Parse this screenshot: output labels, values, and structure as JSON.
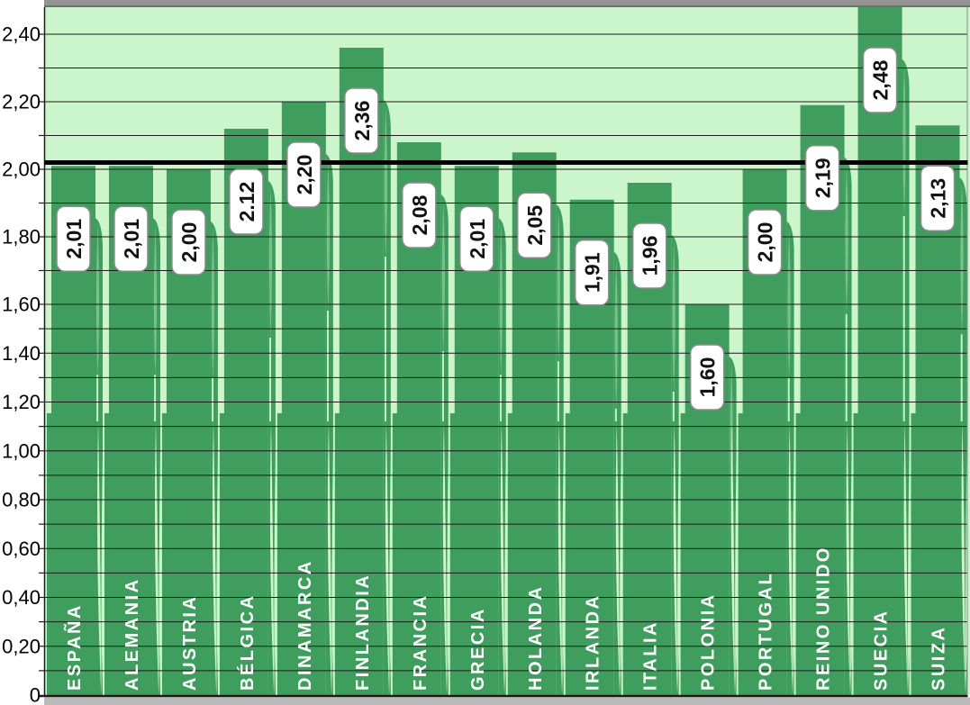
{
  "chart_data": {
    "type": "bar",
    "categories": [
      "ESPAÑA",
      "ALEMANIA",
      "AUSTRIA",
      "BÉLGICA",
      "DINAMARCA",
      "FINLANDIA",
      "FRANCIA",
      "GRECIA",
      "HOLANDA",
      "IRLANDA",
      "ITALIA",
      "POLONIA",
      "PORTUGAL",
      "REINO UNIDO",
      "SUECIA",
      "SUIZA"
    ],
    "values": [
      2.01,
      2.01,
      2.0,
      2.12,
      2.2,
      2.36,
      2.08,
      2.01,
      2.05,
      1.91,
      1.96,
      1.6,
      2.0,
      2.19,
      2.48,
      2.13
    ],
    "value_labels": [
      "2,01",
      "2,01",
      "2,00",
      "2.12",
      "2,20",
      "2,36",
      "2,08",
      "2,01",
      "2,05",
      "1,91",
      "1,96",
      "1,60",
      "2,00",
      "2,19",
      "2,48",
      "2,13"
    ],
    "xlabel": "",
    "ylabel": "",
    "ylim": [
      0,
      2.487
    ],
    "y_axis": {
      "tick_labels": [
        "2,40",
        "2,20",
        "2,00",
        "1,80",
        "1,60",
        "1,40",
        "1,20",
        "1,00",
        "0,80",
        "0,60",
        "0,40",
        "0,20",
        "0"
      ],
      "tick_values": [
        2.4,
        2.2,
        2.0,
        1.8,
        1.6,
        1.4,
        1.2,
        1.0,
        0.8,
        0.6,
        0.4,
        0.2,
        0
      ],
      "minor_grid_step": 0.1,
      "decimal_separator": ","
    },
    "reference_line": {
      "value": 2.02,
      "style": "thick black horizontal line"
    },
    "grid": "horizontal minor gridlines every 0.10, drawn over bars",
    "legend": "none",
    "bar_label_position": "rotated -90deg, white rounded box below bar top",
    "category_label_position": "rotated -90deg, white bold text inside bar bottom"
  },
  "colors": {
    "plot_background": "#cbf5ca",
    "bar": "#3f9e5d",
    "leaf_mid_green": "#7cc08e",
    "leaf_light_green": "#cbf5ca",
    "gridline": "#1c1c1c",
    "reference_line": "#000000",
    "value_box_bg": "#ffffff",
    "value_box_border": "#8c8c8c",
    "value_text": "#111111",
    "country_text": "#ffffff",
    "axis_text": "#000000",
    "axis_line": "#1a1a1a",
    "frame_strip_top": "#949494",
    "frame_strip_bottom": "#b9b9b9",
    "outer_background": "#ffffff"
  }
}
